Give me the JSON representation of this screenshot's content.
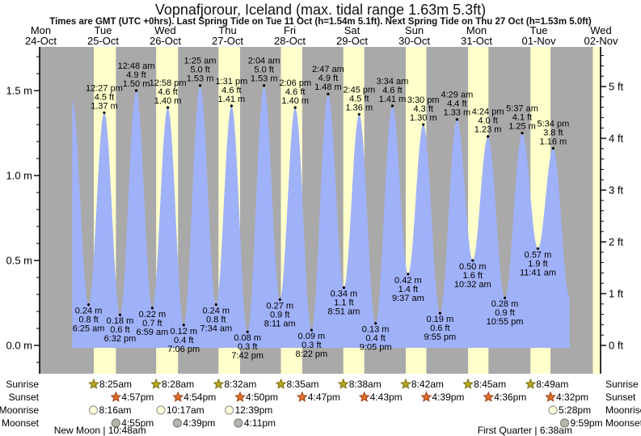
{
  "header": {
    "title": "Vopnafjorour, Iceland (max. tidal range 1.63m 5.3ft)",
    "subtitle": "Times are GMT (UTC +0hrs). Last Spring Tide on Tue 11 Oct (h=1.54m 5.1ft). Next Spring Tide on Thu 27 Oct (h=1.53m 5.0ft)"
  },
  "colors": {
    "night_band": "#a9a9a9",
    "day_band": "#ffffcb",
    "tide_fill": "#9fb1f8",
    "day_label": "#e23333",
    "axis": "#000000",
    "sunrise_star_fill": "#b6a51f",
    "sunrise_star_stroke": "#7a6d15",
    "sunset_star_fill": "#e1702c",
    "sunset_star_stroke": "#9c3d14",
    "moonrise_fill": "#ffffd8",
    "moonrise_stroke": "#9a9a9a",
    "moonset_fill": "#b5b5ad",
    "moonset_stroke": "#80807a"
  },
  "chart_data": {
    "type": "area",
    "title": "Vopnafjorour, Iceland (max. tidal range 1.63m 5.3ft)",
    "ylabel_left": "m",
    "ylabel_right": "ft",
    "y_axis_left": {
      "values": [
        0.0,
        0.5,
        1.0,
        1.5
      ],
      "labels": [
        "0.0 m",
        "0.5 m",
        "1.0 m",
        "1.5 m"
      ]
    },
    "y_axis_right": {
      "values": [
        0,
        1,
        2,
        3,
        4,
        5
      ],
      "labels": [
        "0 ft",
        "1 ft",
        "2 ft",
        "3 ft",
        "4 ft",
        "5 ft"
      ]
    },
    "days": [
      {
        "name": "Mon",
        "date": "24-Oct"
      },
      {
        "name": "Tue",
        "date": "25-Oct"
      },
      {
        "name": "Wed",
        "date": "26-Oct"
      },
      {
        "name": "Thu",
        "date": "27-Oct"
      },
      {
        "name": "Fri",
        "date": "28-Oct"
      },
      {
        "name": "Sat",
        "date": "29-Oct"
      },
      {
        "name": "Sun",
        "date": "30-Oct"
      },
      {
        "name": "Mon",
        "date": "31-Oct"
      },
      {
        "name": "Tue",
        "date": "01-Nov"
      },
      {
        "name": "Wed",
        "date": "02-Nov"
      }
    ],
    "daylight_bands": [
      {
        "day": 1,
        "from": 8.42,
        "to": 16.95
      },
      {
        "day": 2,
        "from": 8.47,
        "to": 16.9
      },
      {
        "day": 3,
        "from": 8.53,
        "to": 16.83
      },
      {
        "day": 4,
        "from": 8.58,
        "to": 16.78
      },
      {
        "day": 5,
        "from": 8.63,
        "to": 16.72
      },
      {
        "day": 6,
        "from": 8.7,
        "to": 16.65
      },
      {
        "day": 7,
        "from": 8.75,
        "to": 16.6
      },
      {
        "day": 8,
        "from": 8.82,
        "to": 16.53
      },
      {
        "day": 9,
        "from": 8.87,
        "to": 16.48
      }
    ],
    "tide_extremes": [
      {
        "type": "high",
        "day": 1,
        "hour": 0.1,
        "m": 1.44,
        "ft": 4.7,
        "time": ""
      },
      {
        "type": "low",
        "day": 1,
        "hour": 6.42,
        "m": 0.24,
        "ft": 0.8,
        "time": "6:25 am"
      },
      {
        "type": "high",
        "day": 1,
        "hour": 12.45,
        "m": 1.37,
        "ft": 4.5,
        "time": "12:27 pm"
      },
      {
        "type": "low",
        "day": 1,
        "hour": 18.53,
        "m": 0.18,
        "ft": 0.6,
        "time": "6:32 pm"
      },
      {
        "type": "high",
        "day": 2,
        "hour": 0.8,
        "m": 1.5,
        "ft": 4.9,
        "time": "12:48 am"
      },
      {
        "type": "low",
        "day": 2,
        "hour": 6.98,
        "m": 0.22,
        "ft": 0.7,
        "time": "6:59 am"
      },
      {
        "type": "high",
        "day": 2,
        "hour": 12.97,
        "m": 1.4,
        "ft": 4.6,
        "time": "12:58 pm"
      },
      {
        "type": "low",
        "day": 2,
        "hour": 19.1,
        "m": 0.12,
        "ft": 0.4,
        "time": "7:06 pm"
      },
      {
        "type": "high",
        "day": 3,
        "hour": 1.42,
        "m": 1.53,
        "ft": 5.0,
        "time": "1:25 am"
      },
      {
        "type": "low",
        "day": 3,
        "hour": 7.57,
        "m": 0.24,
        "ft": 0.8,
        "time": "7:34 am"
      },
      {
        "type": "high",
        "day": 3,
        "hour": 13.52,
        "m": 1.41,
        "ft": 4.6,
        "time": "1:31 pm"
      },
      {
        "type": "low",
        "day": 3,
        "hour": 19.7,
        "m": 0.08,
        "ft": 0.3,
        "time": "7:42 pm"
      },
      {
        "type": "high",
        "day": 4,
        "hour": 2.07,
        "m": 1.53,
        "ft": 5.0,
        "time": "2:04 am"
      },
      {
        "type": "low",
        "day": 4,
        "hour": 8.18,
        "m": 0.27,
        "ft": 0.9,
        "time": "8:11 am"
      },
      {
        "type": "high",
        "day": 4,
        "hour": 14.1,
        "m": 1.4,
        "ft": 4.6,
        "time": "2:06 pm"
      },
      {
        "type": "low",
        "day": 4,
        "hour": 20.37,
        "m": 0.09,
        "ft": 0.3,
        "time": "8:22 pm"
      },
      {
        "type": "high",
        "day": 5,
        "hour": 2.78,
        "m": 1.48,
        "ft": 4.9,
        "time": "2:47 am"
      },
      {
        "type": "low",
        "day": 5,
        "hour": 8.85,
        "m": 0.34,
        "ft": 1.1,
        "time": "8:51 am"
      },
      {
        "type": "high",
        "day": 5,
        "hour": 14.75,
        "m": 1.36,
        "ft": 4.5,
        "time": "2:45 pm"
      },
      {
        "type": "low",
        "day": 5,
        "hour": 21.08,
        "m": 0.13,
        "ft": 0.4,
        "time": "9:05 pm"
      },
      {
        "type": "high",
        "day": 6,
        "hour": 3.57,
        "m": 1.41,
        "ft": 4.6,
        "time": "3:34 am"
      },
      {
        "type": "low",
        "day": 6,
        "hour": 9.62,
        "m": 0.42,
        "ft": 1.4,
        "time": "9:37 am"
      },
      {
        "type": "high",
        "day": 6,
        "hour": 15.5,
        "m": 1.3,
        "ft": 4.3,
        "time": "3:30 pm"
      },
      {
        "type": "low",
        "day": 6,
        "hour": 21.92,
        "m": 0.19,
        "ft": 0.6,
        "time": "9:55 pm"
      },
      {
        "type": "high",
        "day": 7,
        "hour": 4.48,
        "m": 1.33,
        "ft": 4.4,
        "time": "4:29 am"
      },
      {
        "type": "low",
        "day": 7,
        "hour": 10.53,
        "m": 0.5,
        "ft": 1.6,
        "time": "10:32 am"
      },
      {
        "type": "high",
        "day": 7,
        "hour": 16.4,
        "m": 1.23,
        "ft": 4.0,
        "time": "4:24 pm"
      },
      {
        "type": "low",
        "day": 7,
        "hour": 22.92,
        "m": 0.28,
        "ft": 0.9,
        "time": "10:55 pm"
      },
      {
        "type": "high",
        "day": 8,
        "hour": 5.62,
        "m": 1.25,
        "ft": 4.1,
        "time": "5:37 am"
      },
      {
        "type": "low",
        "day": 8,
        "hour": 11.68,
        "m": 0.57,
        "ft": 1.9,
        "time": "11:41 am"
      },
      {
        "type": "high",
        "day": 8,
        "hour": 17.57,
        "m": 1.16,
        "ft": 3.8,
        "time": "5:34 pm"
      },
      {
        "type": "low",
        "day": 8,
        "hour": 23.92,
        "m": 0.28,
        "ft": 0.9,
        "time": ""
      }
    ],
    "astro": {
      "row_labels": [
        "Sunrise",
        "Sunset",
        "Moonrise",
        "Moonset"
      ],
      "sunrise": [
        {
          "day": 1,
          "hour": 8.42,
          "time": "8:25am"
        },
        {
          "day": 2,
          "hour": 8.47,
          "time": "8:28am"
        },
        {
          "day": 3,
          "hour": 8.53,
          "time": "8:32am"
        },
        {
          "day": 4,
          "hour": 8.58,
          "time": "8:35am"
        },
        {
          "day": 5,
          "hour": 8.63,
          "time": "8:38am"
        },
        {
          "day": 6,
          "hour": 8.7,
          "time": "8:42am"
        },
        {
          "day": 7,
          "hour": 8.75,
          "time": "8:45am"
        },
        {
          "day": 8,
          "hour": 8.82,
          "time": "8:49am"
        }
      ],
      "sunset": [
        {
          "day": 1,
          "hour": 16.95,
          "time": "4:57pm"
        },
        {
          "day": 2,
          "hour": 16.9,
          "time": "4:54pm"
        },
        {
          "day": 3,
          "hour": 16.83,
          "time": "4:50pm"
        },
        {
          "day": 4,
          "hour": 16.78,
          "time": "4:47pm"
        },
        {
          "day": 5,
          "hour": 16.72,
          "time": "4:43pm"
        },
        {
          "day": 6,
          "hour": 16.65,
          "time": "4:39pm"
        },
        {
          "day": 7,
          "hour": 16.6,
          "time": "4:36pm"
        },
        {
          "day": 8,
          "hour": 16.53,
          "time": "4:32pm"
        }
      ],
      "moonrise": [
        {
          "day": 1,
          "hour": 8.27,
          "time": "8:16am"
        },
        {
          "day": 2,
          "hour": 10.28,
          "time": "10:17am"
        },
        {
          "day": 3,
          "hour": 12.65,
          "time": "12:39pm"
        },
        {
          "day": 8,
          "hour": 17.47,
          "time": "5:28pm"
        }
      ],
      "moonset": [
        {
          "day": 1,
          "hour": 16.92,
          "time": "4:55pm"
        },
        {
          "day": 2,
          "hour": 16.65,
          "time": "4:39pm"
        },
        {
          "day": 3,
          "hour": 16.18,
          "time": "4:11pm"
        },
        {
          "day": 8,
          "hour": 21.98,
          "time": "9:59pm"
        }
      ],
      "moon_phases": [
        {
          "day": 1,
          "hour": 10.8,
          "text": "New Moon | 10:48am"
        },
        {
          "day": 8,
          "hour": 6.63,
          "text": "First Quarter | 6:38am"
        }
      ]
    }
  }
}
